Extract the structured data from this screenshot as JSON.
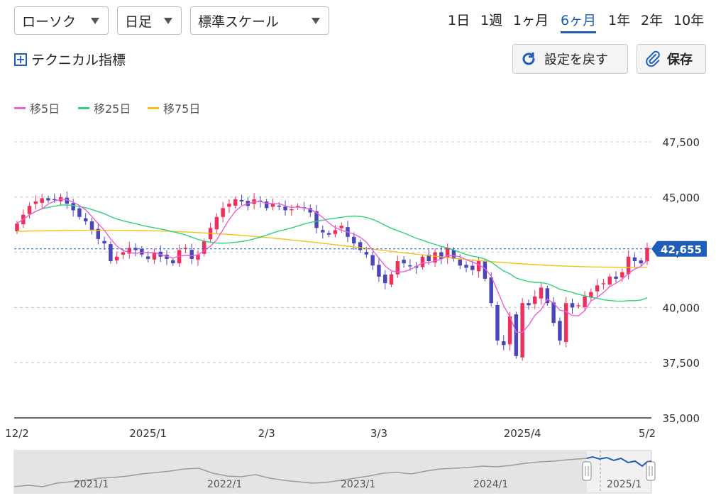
{
  "controls": {
    "chart_type": "ローソク",
    "interval": "日足",
    "scale": "標準スケール",
    "periods": [
      "1日",
      "1週",
      "1ヶ月",
      "6ヶ月",
      "1年",
      "2年",
      "10年"
    ],
    "active_period_index": 3,
    "technical_label": "テクニカル指標",
    "reset_label": "設定を戻す",
    "save_label": "保存"
  },
  "colors": {
    "up": "#f0305c",
    "down": "#4a45b8",
    "ma5": "#ea60d8",
    "ma25": "#2ed27a",
    "ma75": "#f3c21a",
    "accent": "#1f5eb8"
  },
  "chart_data": {
    "type": "candlestick",
    "ylim": [
      35000,
      47500
    ],
    "yticks": [
      "47,500",
      "45,000",
      "42,500",
      "40,000",
      "37,500",
      "35,000"
    ],
    "ytick_values": [
      47500,
      45000,
      42500,
      40000,
      37500,
      35000
    ],
    "xticks": [
      "12/2",
      "2025/1",
      "2/3",
      "3/3",
      "2025/4",
      "5/2"
    ],
    "xtick_index": [
      0,
      21,
      40,
      58,
      81,
      101
    ],
    "current_price": 42655,
    "current_price_label": "42,655",
    "legend": [
      "移5日",
      "移25日",
      "移75日"
    ],
    "series_ma_names": [
      "移5日",
      "移25日",
      "移75日"
    ],
    "close": [
      43800,
      44200,
      44600,
      44800,
      44950,
      44850,
      44900,
      45000,
      44700,
      44400,
      44100,
      43900,
      43500,
      43100,
      42900,
      42100,
      42300,
      42500,
      42700,
      42600,
      42400,
      42200,
      42500,
      42300,
      42200,
      42000,
      42600,
      42700,
      42200,
      42400,
      43000,
      43600,
      44100,
      44500,
      44700,
      44900,
      44800,
      44600,
      44900,
      44800,
      44500,
      44700,
      44600,
      44400,
      44450,
      44600,
      44500,
      44300,
      43600,
      43400,
      43300,
      43500,
      43700,
      43200,
      42900,
      42600,
      42400,
      41900,
      41400,
      41100,
      41500,
      42100,
      42000,
      41900,
      41800,
      42300,
      42100,
      42500,
      42200,
      42700,
      42200,
      41900,
      41800,
      41700,
      42100,
      41300,
      40200,
      38500,
      38300,
      39600,
      37800,
      40200,
      40100,
      40500,
      40900,
      40200,
      39300,
      38500,
      40200,
      40000,
      40100,
      40500,
      40700,
      41000,
      41100,
      41400,
      41300,
      41600,
      42300,
      42100,
      42000,
      42700
    ]
  }
}
